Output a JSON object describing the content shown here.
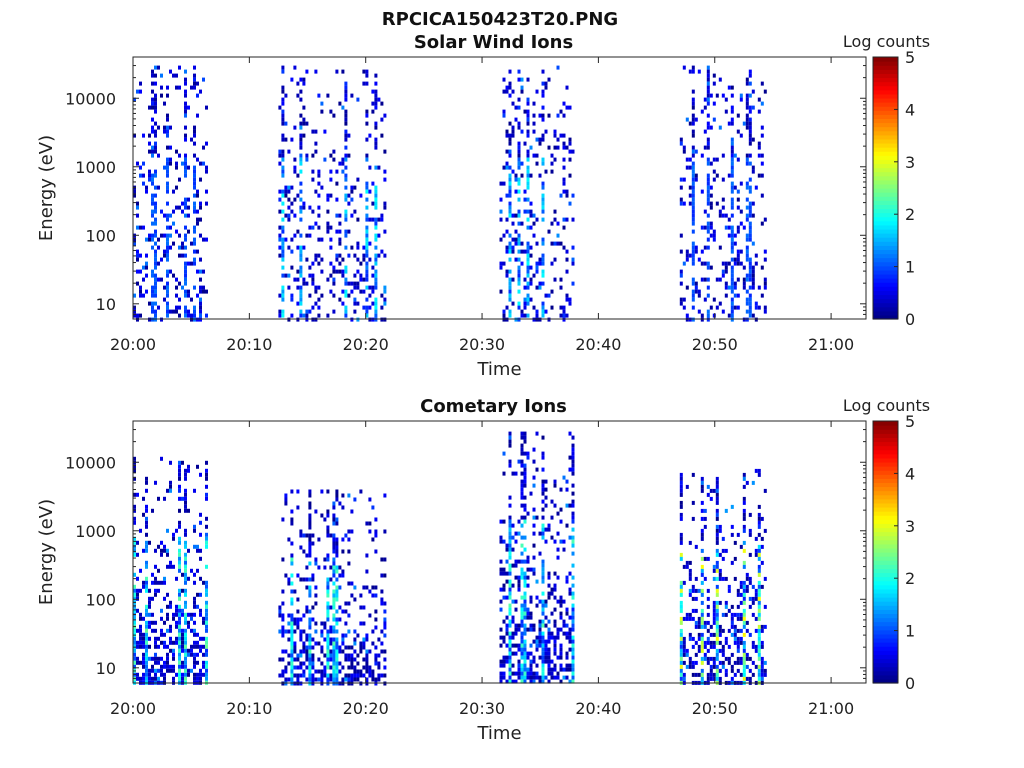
{
  "figure": {
    "title": "RPCICA150423T20.PNG"
  },
  "chart_data": [
    {
      "type": "heatmap",
      "title": "Solar Wind Ions",
      "xlabel": "Time",
      "ylabel": "Energy (eV)",
      "x_ticks": [
        "20:00",
        "20:10",
        "20:20",
        "20:30",
        "20:40",
        "20:50",
        "21:00"
      ],
      "x_range": [
        "20:00",
        "21:03"
      ],
      "y_scale": "log",
      "y_ticks": [
        10,
        100,
        1000,
        10000
      ],
      "y_tick_labels": [
        "10",
        "100",
        "1000",
        "10000"
      ],
      "y_range": [
        6,
        40000
      ],
      "colorbar": {
        "label": "Log counts",
        "range": [
          0,
          5
        ],
        "ticks": [
          "0",
          "1",
          "2",
          "3",
          "4",
          "5"
        ],
        "colormap": "jet"
      },
      "activity_windows": [
        {
          "start": "20:00",
          "end": "20:06:30",
          "min_energy": 6,
          "max_energy": 30000,
          "peak_log_counts": 1.2
        },
        {
          "start": "20:12:30",
          "end": "20:22",
          "min_energy": 6,
          "max_energy": 30000,
          "peak_log_counts": 1.9
        },
        {
          "start": "20:31:30",
          "end": "20:38",
          "min_energy": 6,
          "max_energy": 30000,
          "peak_log_counts": 1.9
        },
        {
          "start": "20:47",
          "end": "20:54:30",
          "min_energy": 6,
          "max_energy": 30000,
          "peak_log_counts": 1.2
        }
      ]
    },
    {
      "type": "heatmap",
      "title": "Cometary Ions",
      "xlabel": "Time",
      "ylabel": "Energy (eV)",
      "x_ticks": [
        "20:00",
        "20:10",
        "20:20",
        "20:30",
        "20:40",
        "20:50",
        "21:00"
      ],
      "x_range": [
        "20:00",
        "21:03"
      ],
      "y_scale": "log",
      "y_ticks": [
        10,
        100,
        1000,
        10000
      ],
      "y_tick_labels": [
        "10",
        "100",
        "1000",
        "10000"
      ],
      "y_range": [
        6,
        40000
      ],
      "colorbar": {
        "label": "Log counts",
        "range": [
          0,
          5
        ],
        "ticks": [
          "0",
          "1",
          "2",
          "3",
          "4",
          "5"
        ],
        "colormap": "jet"
      },
      "activity_windows": [
        {
          "start": "20:00",
          "end": "20:06:30",
          "min_energy": 6,
          "max_energy": 12000,
          "peak_log_counts": 2.4
        },
        {
          "start": "20:12:30",
          "end": "20:22",
          "min_energy": 6,
          "max_energy": 4000,
          "peak_log_counts": 2.3
        },
        {
          "start": "20:31:30",
          "end": "20:38",
          "min_energy": 6,
          "max_energy": 28000,
          "peak_log_counts": 2.3
        },
        {
          "start": "20:47",
          "end": "20:54:30",
          "min_energy": 6,
          "max_energy": 8000,
          "peak_log_counts": 3.2
        }
      ]
    }
  ]
}
